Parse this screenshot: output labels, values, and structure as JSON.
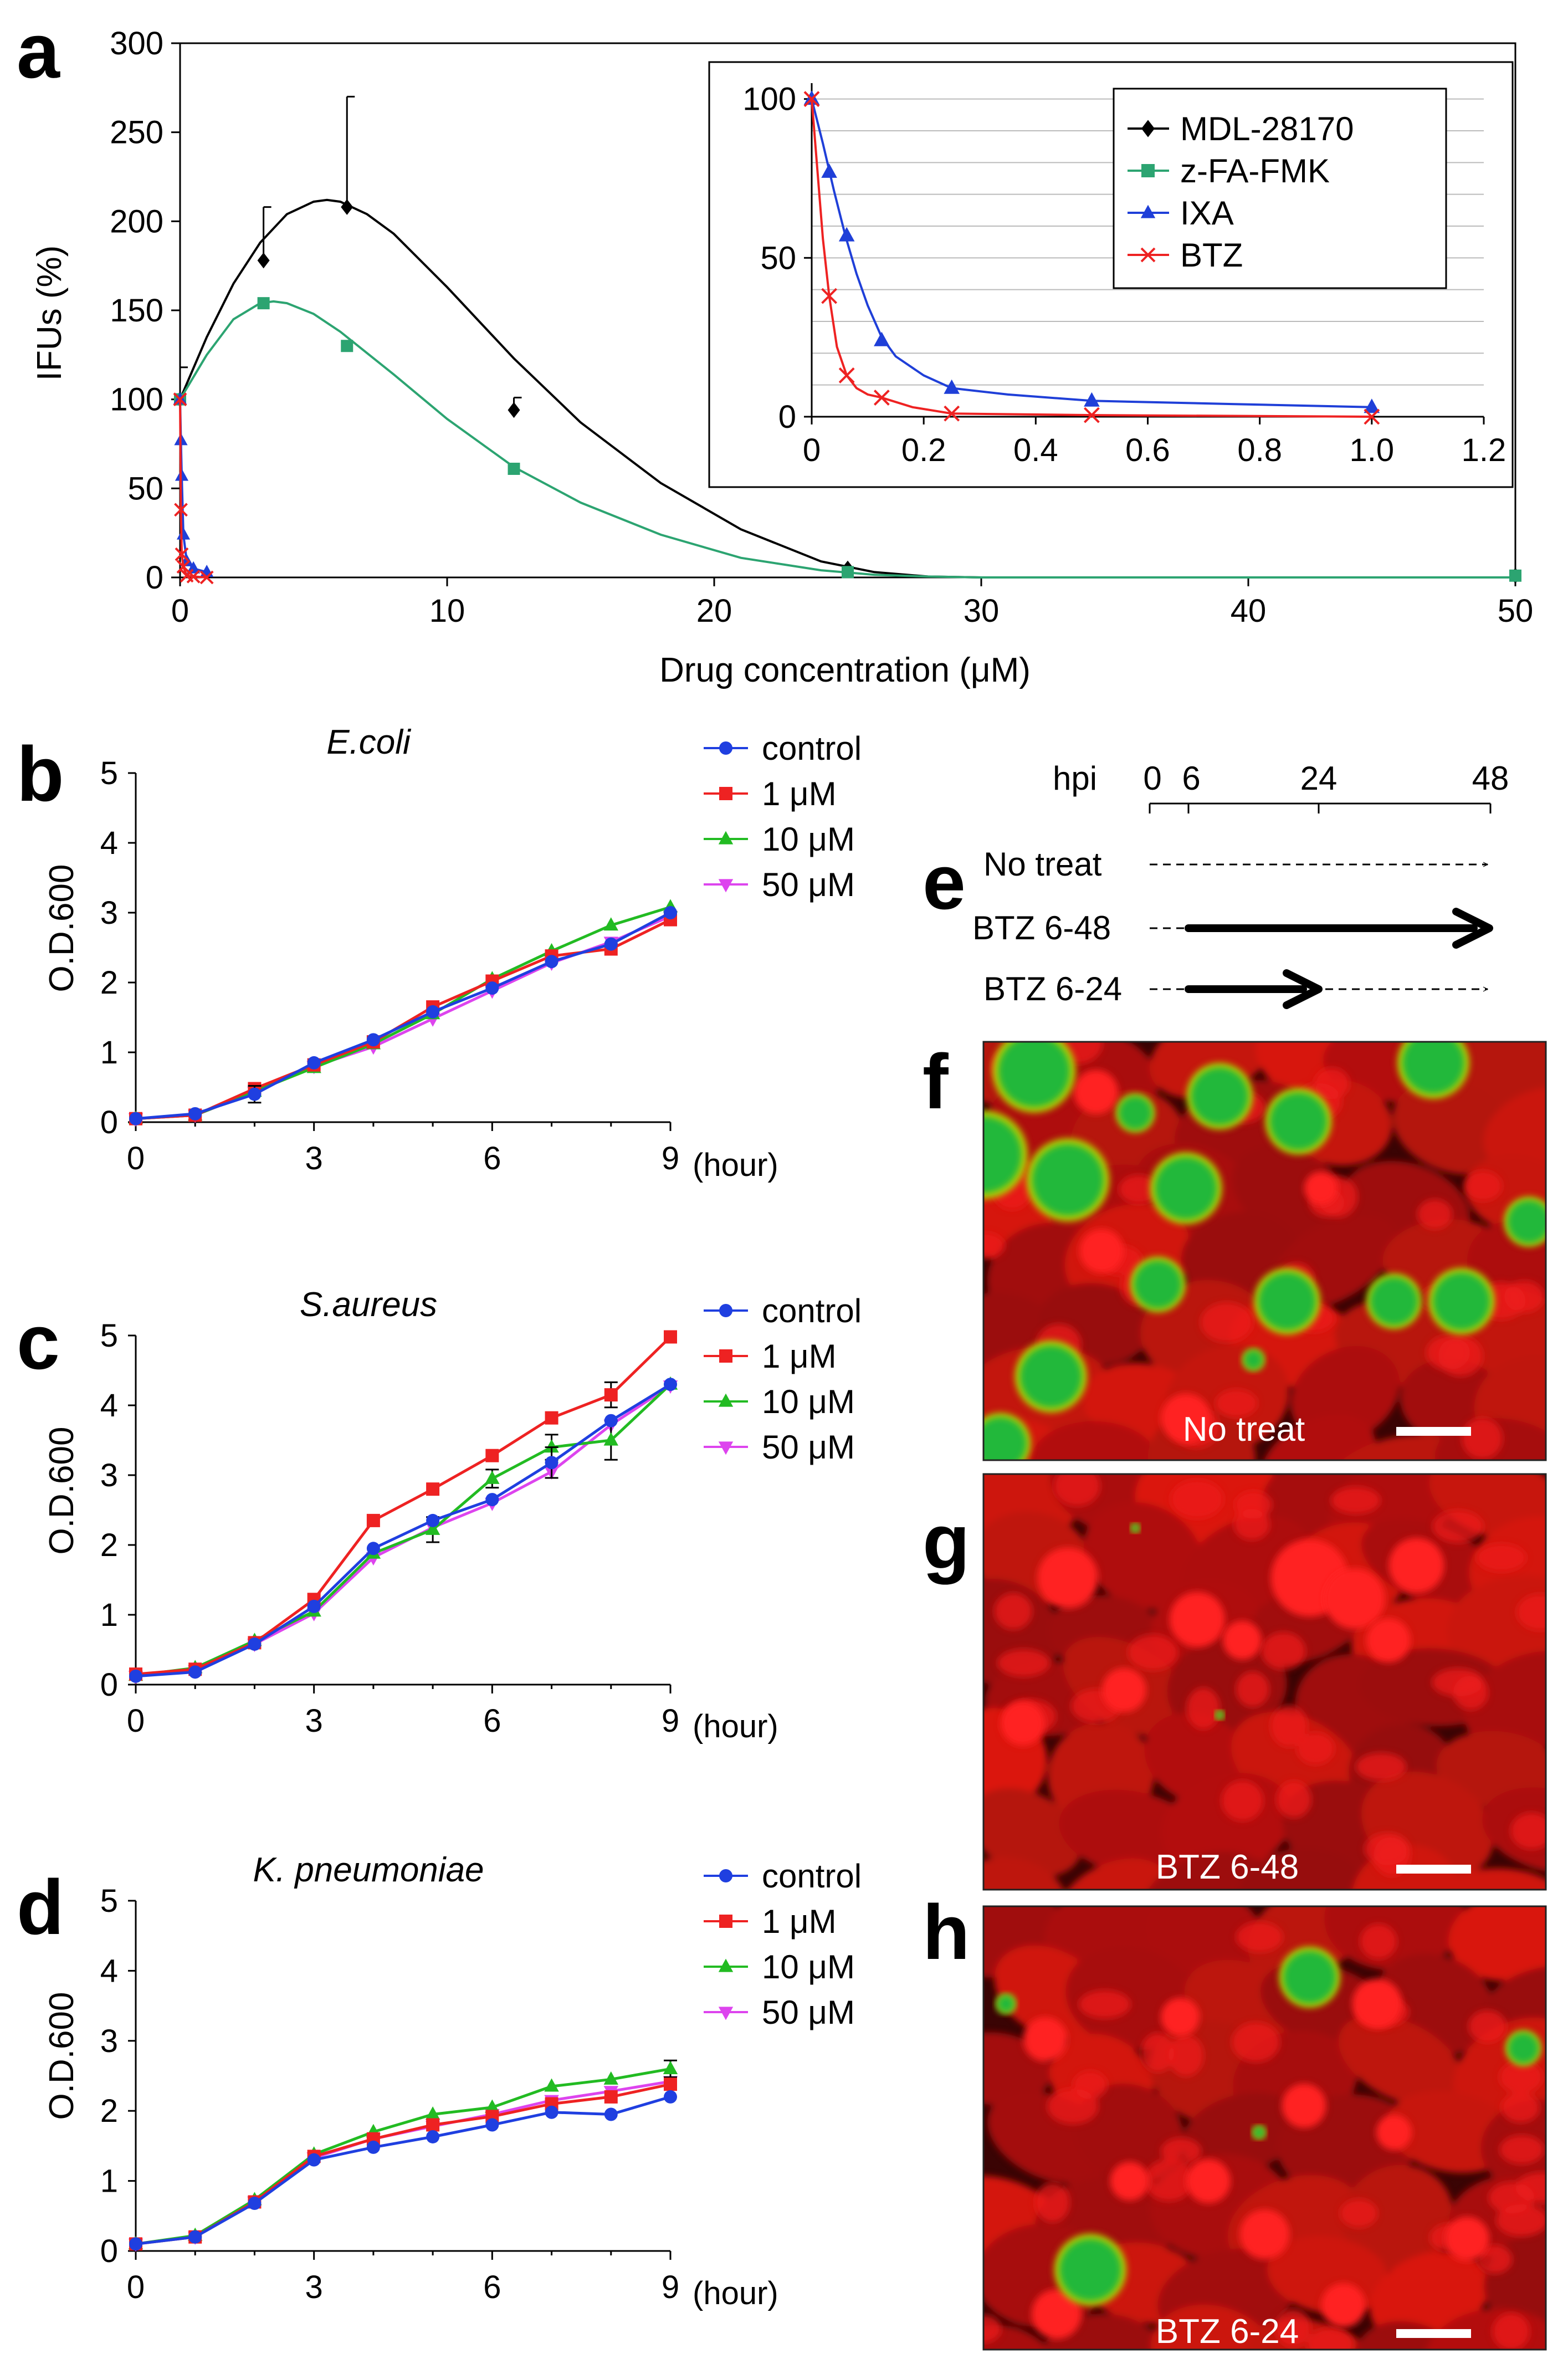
{
  "colors": {
    "mdl": "#000000",
    "zfa": "#2ca471",
    "ixa": "#1f3fd8",
    "btz": "#ee2222",
    "control": "#1f3fe0",
    "c1": "#ee2222",
    "c10": "#22bb22",
    "c50": "#dd44ee",
    "cell_red": "#e01010",
    "cell_green": "#22c040",
    "grid": "#bbbbbb"
  },
  "panel_letters": {
    "a": "a",
    "b": "b",
    "c": "c",
    "d": "d",
    "e": "e",
    "f": "f",
    "g": "g",
    "h": "h"
  },
  "chart_data": [
    {
      "id": "a",
      "type": "line",
      "xlabel": "Drug concentration (μM)",
      "ylabel": "IFUs (%)",
      "xlim": [
        0,
        50
      ],
      "ylim": [
        0,
        300
      ],
      "xticks": [
        "0",
        "10",
        "20",
        "30",
        "40",
        "50"
      ],
      "yticks": [
        "0",
        "50",
        "100",
        "150",
        "200",
        "250",
        "300"
      ],
      "series": [
        {
          "name": "MDL-28170",
          "marker": "diamond",
          "color": "#000000",
          "x": [
            0,
            3.125,
            6.25,
            12.5,
            25,
            50
          ],
          "y": [
            100,
            178,
            208,
            94,
            5,
            1
          ],
          "err": [
            18,
            30,
            62,
            7,
            0,
            0
          ],
          "curve_x": [
            0,
            1,
            2,
            3,
            4,
            5,
            5.5,
            6,
            7,
            8,
            10,
            12.5,
            15,
            18,
            21,
            24,
            26,
            28,
            30,
            35,
            40,
            45,
            50
          ],
          "curve_y": [
            100,
            135,
            165,
            188,
            204,
            211,
            212,
            211,
            204,
            193,
            163,
            123,
            87,
            53,
            27,
            9,
            3,
            0.5,
            0,
            0,
            0,
            0,
            0
          ]
        },
        {
          "name": "z-FA-FMK",
          "marker": "square",
          "color": "#2ca471",
          "x": [
            0,
            3.125,
            6.25,
            12.5,
            25,
            50
          ],
          "y": [
            100,
            154,
            130,
            61,
            3,
            1
          ],
          "err": [
            0,
            0,
            0,
            0,
            0,
            0
          ],
          "curve_x": [
            0,
            1,
            2,
            3,
            3.5,
            4,
            5,
            6,
            8,
            10,
            12.5,
            15,
            18,
            21,
            24,
            26,
            28,
            30,
            35,
            40,
            45,
            50
          ],
          "curve_y": [
            100,
            125,
            145,
            154,
            155,
            154,
            148,
            138,
            114,
            89,
            62,
            42,
            24,
            11,
            4,
            1.5,
            0.5,
            0,
            0,
            0,
            0,
            0
          ]
        },
        {
          "name": "IXA",
          "marker": "triangle",
          "color": "#1f3fd8",
          "x": [
            0,
            0.03125,
            0.0625,
            0.125,
            0.25,
            0.5,
            1.0
          ],
          "y": [
            100,
            77,
            57,
            24,
            9,
            5,
            3
          ],
          "err": [
            0,
            0,
            0,
            0,
            0,
            0,
            0
          ]
        },
        {
          "name": "BTZ",
          "marker": "cross",
          "color": "#ee2222",
          "x": [
            0,
            0.03125,
            0.0625,
            0.125,
            0.25,
            0.5,
            1.0
          ],
          "y": [
            100,
            38,
            13,
            6,
            1,
            0.5,
            0
          ],
          "err": [
            0,
            0,
            0,
            0,
            0,
            0,
            0
          ]
        }
      ],
      "inset": {
        "xlim": [
          0,
          1.2
        ],
        "ylim": [
          0,
          105
        ],
        "xticks": [
          "0",
          "0.2",
          "0.4",
          "0.6",
          "0.8",
          "1.0",
          "1.2"
        ],
        "yticks": [
          "0",
          "50",
          "100"
        ],
        "legend": [
          "MDL-28170",
          "z-FA-FMK",
          "IXA",
          "BTZ"
        ]
      }
    },
    {
      "id": "b",
      "type": "line",
      "title": "E.coli",
      "ylabel": "O.D.600",
      "xunit": "(hour)",
      "xlim": [
        0,
        9
      ],
      "ylim": [
        0,
        5
      ],
      "xticks": [
        "0",
        "3",
        "6",
        "9"
      ],
      "yticks": [
        "0",
        "1",
        "2",
        "3",
        "4",
        "5"
      ],
      "x": [
        0,
        1,
        2,
        3,
        4,
        5,
        6,
        7,
        8,
        9
      ],
      "series": [
        {
          "name": "control",
          "values": [
            0.05,
            0.12,
            0.4,
            0.85,
            1.18,
            1.58,
            1.92,
            2.3,
            2.55,
            3.0
          ],
          "err": [
            0,
            0,
            0.12,
            0,
            0,
            0,
            0,
            0,
            0,
            0
          ]
        },
        {
          "name": "1 μM",
          "values": [
            0.05,
            0.1,
            0.48,
            0.82,
            1.15,
            1.65,
            2.02,
            2.38,
            2.48,
            2.9
          ],
          "err": [
            0,
            0,
            0,
            0,
            0,
            0,
            0,
            0,
            0,
            0
          ]
        },
        {
          "name": "10 μM",
          "values": [
            0.05,
            0.1,
            0.44,
            0.78,
            1.12,
            1.55,
            2.05,
            2.45,
            2.82,
            3.08
          ],
          "err": [
            0,
            0,
            0,
            0,
            0,
            0,
            0,
            0,
            0,
            0
          ]
        },
        {
          "name": "50 μM",
          "values": [
            0.05,
            0.1,
            0.43,
            0.8,
            1.08,
            1.48,
            1.88,
            2.28,
            2.58,
            2.95
          ],
          "err": [
            0,
            0,
            0,
            0,
            0,
            0,
            0,
            0,
            0,
            0
          ]
        }
      ]
    },
    {
      "id": "c",
      "type": "line",
      "title": "S.aureus",
      "ylabel": "O.D.600",
      "xunit": "(hour)",
      "xlim": [
        0,
        9
      ],
      "ylim": [
        0,
        5
      ],
      "xticks": [
        "0",
        "3",
        "6",
        "9"
      ],
      "yticks": [
        "0",
        "1",
        "2",
        "3",
        "4",
        "5"
      ],
      "x": [
        0,
        1,
        2,
        3,
        4,
        5,
        6,
        7,
        8,
        9
      ],
      "series": [
        {
          "name": "control",
          "values": [
            0.12,
            0.18,
            0.58,
            1.12,
            1.95,
            2.35,
            2.65,
            3.18,
            3.78,
            4.3
          ],
          "err": [
            0,
            0,
            0,
            0,
            0,
            0,
            0,
            0.22,
            0,
            0
          ]
        },
        {
          "name": "1 μM",
          "values": [
            0.15,
            0.22,
            0.6,
            1.22,
            2.35,
            2.8,
            3.28,
            3.82,
            4.15,
            4.98
          ],
          "err": [
            0,
            0,
            0,
            0,
            0,
            0,
            0,
            0,
            0.18,
            0
          ]
        },
        {
          "name": "10 μM",
          "values": [
            0.13,
            0.24,
            0.63,
            1.05,
            1.88,
            2.22,
            2.95,
            3.4,
            3.5,
            4.3
          ],
          "err": [
            0,
            0,
            0,
            0,
            0,
            0.18,
            0.13,
            0.18,
            0.28,
            0
          ]
        },
        {
          "name": "50 μM",
          "values": [
            0.12,
            0.2,
            0.58,
            1.02,
            1.82,
            2.25,
            2.6,
            3.05,
            3.72,
            4.28
          ],
          "err": [
            0,
            0,
            0,
            0,
            0,
            0,
            0,
            0,
            0,
            0
          ]
        }
      ]
    },
    {
      "id": "d",
      "type": "line",
      "title": "K. pneumoniae",
      "ylabel": "O.D.600",
      "xunit": "(hour)",
      "xlim": [
        0,
        9
      ],
      "ylim": [
        0,
        5
      ],
      "xticks": [
        "0",
        "3",
        "6",
        "9"
      ],
      "yticks": [
        "0",
        "1",
        "2",
        "3",
        "4",
        "5"
      ],
      "x": [
        0,
        1,
        2,
        3,
        4,
        5,
        6,
        7,
        8,
        9
      ],
      "series": [
        {
          "name": "control",
          "values": [
            0.1,
            0.2,
            0.68,
            1.3,
            1.48,
            1.63,
            1.8,
            1.98,
            1.95,
            2.2
          ],
          "err": [
            0,
            0,
            0,
            0,
            0,
            0,
            0,
            0,
            0,
            0
          ]
        },
        {
          "name": "1 μM",
          "values": [
            0.1,
            0.2,
            0.7,
            1.35,
            1.6,
            1.8,
            1.92,
            2.1,
            2.2,
            2.38
          ],
          "err": [
            0,
            0,
            0,
            0,
            0,
            0,
            0,
            0,
            0,
            0
          ]
        },
        {
          "name": "10 μM",
          "values": [
            0.1,
            0.22,
            0.73,
            1.38,
            1.7,
            1.95,
            2.05,
            2.35,
            2.45,
            2.6
          ],
          "err": [
            0,
            0,
            0,
            0,
            0,
            0,
            0,
            0,
            0,
            0.12
          ]
        },
        {
          "name": "50 μM",
          "values": [
            0.1,
            0.2,
            0.7,
            1.33,
            1.6,
            1.78,
            1.95,
            2.15,
            2.28,
            2.42
          ],
          "err": [
            0,
            0,
            0,
            0,
            0,
            0,
            0,
            0,
            0,
            0
          ]
        }
      ]
    }
  ],
  "timeline": {
    "label": "hpi",
    "ticks": [
      "0",
      "6",
      "24",
      "48"
    ],
    "rows": [
      "No treat",
      "BTZ 6-48",
      "BTZ 6-24"
    ]
  },
  "micrographs": [
    {
      "id": "f",
      "caption": "No treat"
    },
    {
      "id": "g",
      "caption": "BTZ 6-48"
    },
    {
      "id": "h",
      "caption": "BTZ 6-24"
    }
  ]
}
